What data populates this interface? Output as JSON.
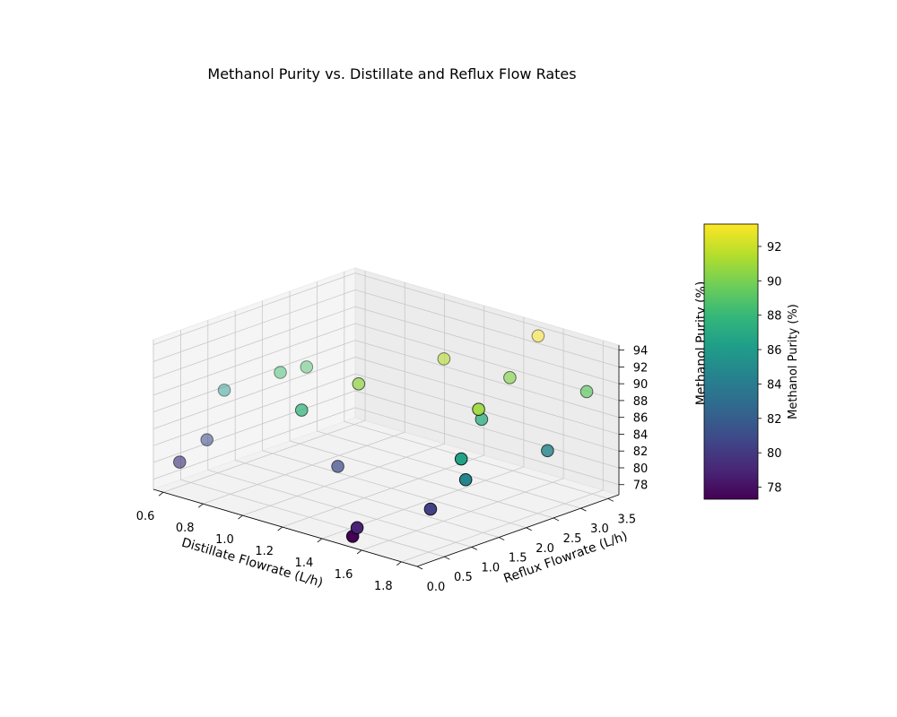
{
  "chart_data": {
    "type": "scatter",
    "title": "Methanol Purity vs. Distillate and Reflux Flow Rates",
    "xlabel": "Distillate Flowrate (L/h)",
    "ylabel": "Reflux Flowrate (L/h)",
    "zlabel": "Methanol Purity (%)",
    "x_ticks": [
      "0.6",
      "0.8",
      "1.0",
      "1.2",
      "1.4",
      "1.6",
      "1.8"
    ],
    "y_ticks": [
      "0.0",
      "0.5",
      "1.0",
      "1.5",
      "2.0",
      "2.5",
      "3.0",
      "3.5"
    ],
    "z_ticks": [
      "78",
      "80",
      "82",
      "84",
      "86",
      "88",
      "90",
      "92",
      "94"
    ],
    "xlim": [
      0.55,
      1.88
    ],
    "ylim": [
      0.0,
      3.7
    ],
    "zlim": [
      76.8,
      94.6
    ],
    "colorbar": {
      "label": "Methanol Purity (%)",
      "ticks": [
        "78",
        "80",
        "82",
        "84",
        "86",
        "88",
        "90",
        "92"
      ],
      "range": [
        77.3,
        93.3
      ],
      "colormap": "viridis"
    },
    "grid": true,
    "points": [
      {
        "distillate": 1.5,
        "reflux": 3.6,
        "purity": 93.3
      },
      {
        "distillate": 1.3,
        "reflux": 2.6,
        "purity": 91.5
      },
      {
        "distillate": 0.8,
        "reflux": 1.9,
        "purity": 88.7
      },
      {
        "distillate": 0.75,
        "reflux": 1.6,
        "purity": 88.4
      },
      {
        "distillate": 1.2,
        "reflux": 1.4,
        "purity": 90.6
      },
      {
        "distillate": 1.55,
        "reflux": 2.9,
        "purity": 90.3
      },
      {
        "distillate": 1.75,
        "reflux": 1.6,
        "purity": 90.9
      },
      {
        "distillate": 1.6,
        "reflux": 2.2,
        "purity": 87.3
      },
      {
        "distillate": 1.05,
        "reflux": 0.9,
        "purity": 87.6
      },
      {
        "distillate": 0.55,
        "reflux": 1.3,
        "purity": 85.6
      },
      {
        "distillate": 1.8,
        "reflux": 3.4,
        "purity": 89.2
      },
      {
        "distillate": 1.85,
        "reflux": 2.5,
        "purity": 84.6
      },
      {
        "distillate": 1.8,
        "reflux": 1.1,
        "purity": 86.5
      },
      {
        "distillate": 1.85,
        "reflux": 1.0,
        "purity": 84.6
      },
      {
        "distillate": 0.6,
        "reflux": 0.8,
        "purity": 81.2
      },
      {
        "distillate": 0.6,
        "reflux": 0.3,
        "purity": 79.7
      },
      {
        "distillate": 1.15,
        "reflux": 1.2,
        "purity": 80.9
      },
      {
        "distillate": 1.7,
        "reflux": 0.9,
        "purity": 80.3
      },
      {
        "distillate": 1.55,
        "reflux": 0.1,
        "purity": 78.9
      },
      {
        "distillate": 1.5,
        "reflux": 0.2,
        "purity": 77.3
      }
    ]
  }
}
